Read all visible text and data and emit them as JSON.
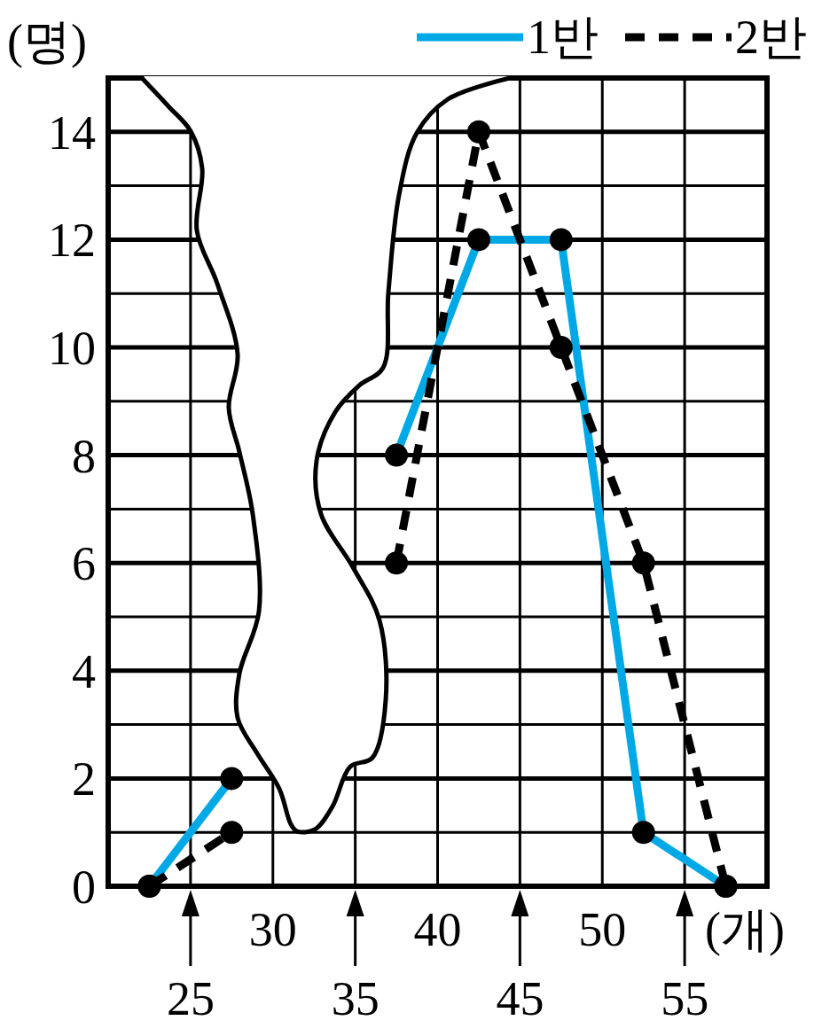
{
  "chart_data": {
    "type": "line",
    "ylabel": "(명)",
    "xlabel": "(개)",
    "x": [
      22.5,
      27.5,
      32.5,
      37.5,
      42.5,
      47.5,
      52.5,
      57.5
    ],
    "series": [
      {
        "name": "1반",
        "color": "#00a9e6",
        "line_style": "solid",
        "values": [
          0,
          2,
          null,
          8,
          12,
          12,
          1,
          0
        ]
      },
      {
        "name": "2반",
        "color": "#000000",
        "line_style": "dashed",
        "values": [
          0,
          1,
          null,
          6,
          14,
          10,
          6,
          0
        ]
      }
    ],
    "xlim": [
      20,
      60
    ],
    "xticks": [
      {
        "value": 25,
        "label": null
      },
      30,
      {
        "value": 35,
        "label": null
      },
      40,
      {
        "value": 45,
        "label": null
      },
      50,
      {
        "value": 55,
        "label": null
      }
    ],
    "annotations": [
      "25",
      "35",
      "45",
      "55"
    ],
    "ylim": [
      0,
      15
    ],
    "yticks": [
      0,
      {
        "value": 1,
        "label": null
      },
      2,
      {
        "value": 3,
        "label": null
      },
      4,
      {
        "value": 5,
        "label": null
      },
      6,
      {
        "value": 7,
        "label": null
      },
      8,
      {
        "value": 9,
        "label": null
      },
      10,
      {
        "value": 11,
        "label": null
      },
      12,
      {
        "value": 13,
        "label": null
      },
      14,
      {
        "value": 15,
        "label": null
      }
    ],
    "grid": true,
    "legend": "top right",
    "marker": "circle"
  }
}
